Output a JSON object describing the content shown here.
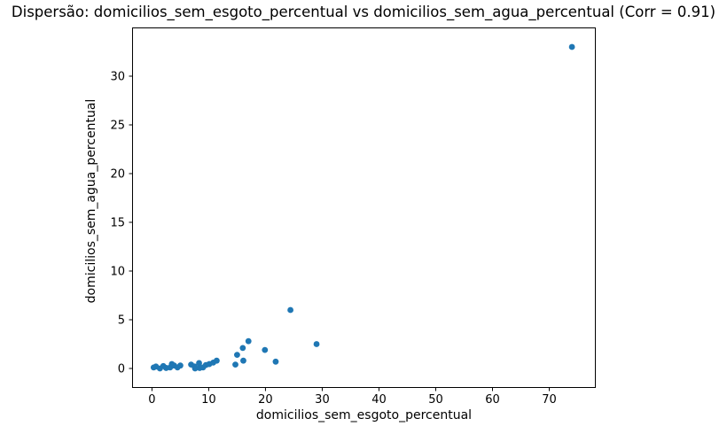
{
  "chart_data": {
    "type": "scatter",
    "title": "Dispersão: domicilios_sem_esgoto_percentual vs domicilios_sem_agua_percentual (Corr = 0.91)",
    "xlabel": "domicilios_sem_esgoto_percentual",
    "ylabel": "domicilios_sem_agua_percentual",
    "corr": 0.91,
    "marker_color": "#1f77b4",
    "frame_color": "#000000",
    "grid": false,
    "legend": null,
    "xlim": [
      -3.5,
      78.2
    ],
    "ylim": [
      -2.0,
      35.0
    ],
    "xticks": [
      0,
      10,
      20,
      30,
      40,
      50,
      60,
      70
    ],
    "yticks": [
      0,
      5,
      10,
      15,
      20,
      25,
      30
    ],
    "points": [
      [
        0.3,
        0.1
      ],
      [
        0.7,
        0.2
      ],
      [
        1.4,
        0.0
      ],
      [
        2.0,
        0.25
      ],
      [
        2.5,
        0.05
      ],
      [
        3.2,
        0.1
      ],
      [
        3.5,
        0.45
      ],
      [
        3.9,
        0.3
      ],
      [
        4.5,
        0.1
      ],
      [
        5.0,
        0.3
      ],
      [
        6.9,
        0.4
      ],
      [
        7.5,
        0.2
      ],
      [
        7.6,
        0.0
      ],
      [
        8.3,
        0.55
      ],
      [
        8.4,
        0.05
      ],
      [
        9.0,
        0.1
      ],
      [
        9.5,
        0.35
      ],
      [
        10.1,
        0.45
      ],
      [
        10.8,
        0.6
      ],
      [
        11.4,
        0.8
      ],
      [
        14.7,
        0.4
      ],
      [
        15.0,
        1.4
      ],
      [
        16.0,
        2.1
      ],
      [
        16.1,
        0.8
      ],
      [
        17.0,
        2.8
      ],
      [
        19.9,
        1.9
      ],
      [
        21.8,
        0.7
      ],
      [
        24.4,
        6.0
      ],
      [
        29.0,
        2.5
      ],
      [
        74.0,
        33.0
      ]
    ]
  }
}
